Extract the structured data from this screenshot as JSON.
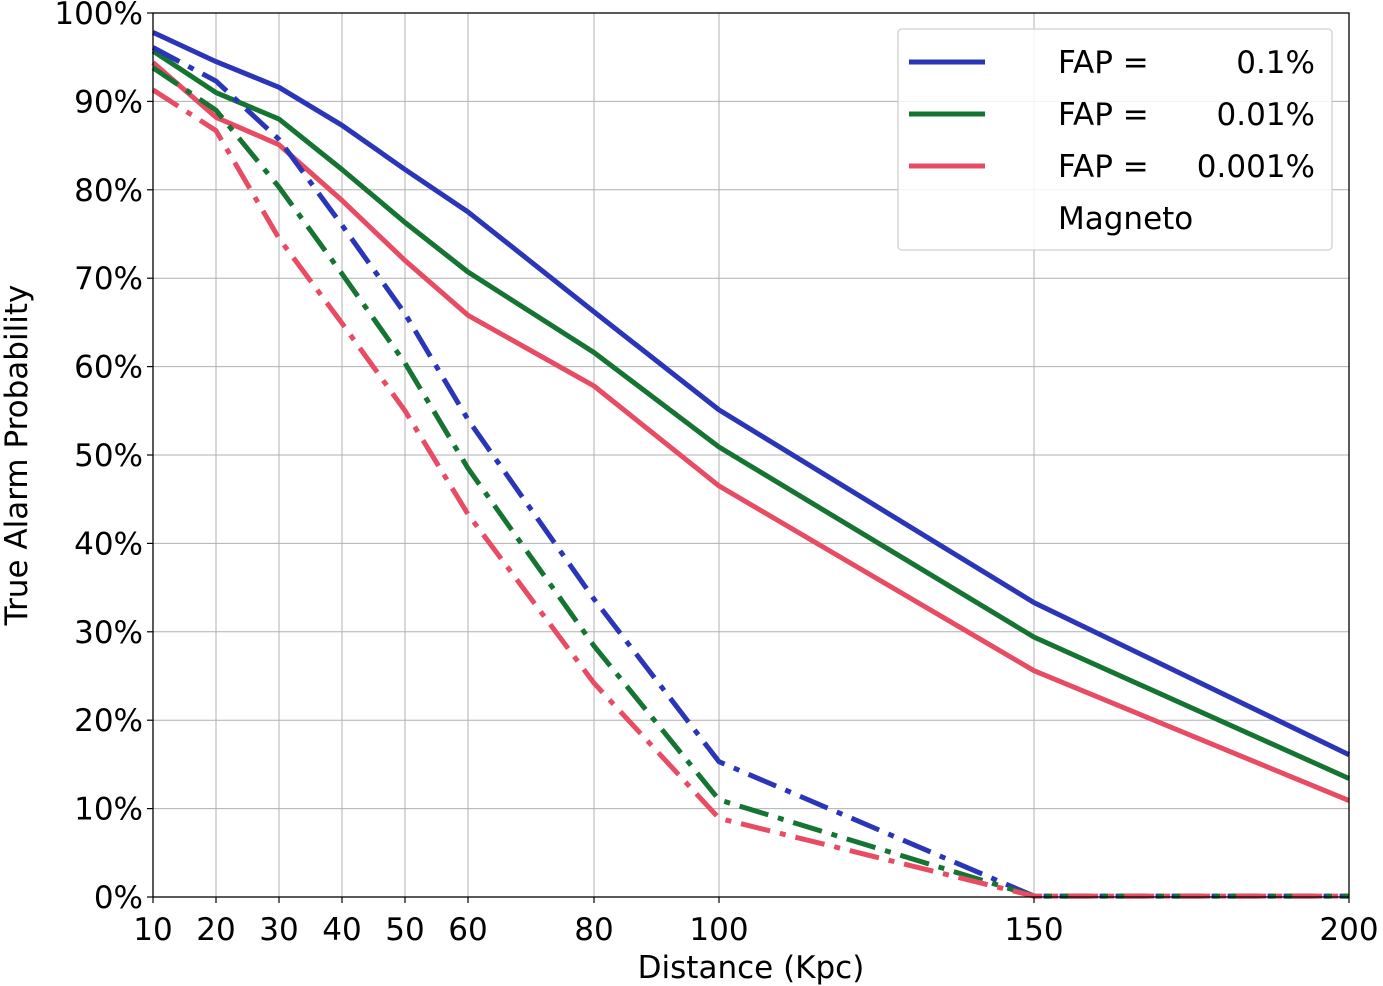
{
  "chart_data": {
    "type": "line",
    "xlabel": "Distance (Kpc)",
    "ylabel": "True Alarm Probability",
    "x": [
      10,
      20,
      30,
      40,
      50,
      60,
      80,
      100,
      150,
      200
    ],
    "xticks": [
      "10",
      "20",
      "30",
      "40",
      "50",
      "60",
      "80",
      "100",
      "150",
      "200"
    ],
    "yticks": [
      "0%",
      "10%",
      "20%",
      "30%",
      "40%",
      "50%",
      "60%",
      "70%",
      "80%",
      "90%",
      "100%"
    ],
    "ylim": [
      0,
      100
    ],
    "grid": true,
    "legend_position": "top-right",
    "legend": {
      "rows": [
        {
          "prefix": "FAP =",
          "value": "0.1%",
          "color": "#2b35b8"
        },
        {
          "prefix": "FAP =",
          "value": "0.01%",
          "color": "#157432"
        },
        {
          "prefix": "FAP =",
          "value": "0.001%",
          "color": "#e84c64"
        }
      ],
      "footer": "Magneto"
    },
    "series": [
      {
        "fap": "0.1%",
        "style": "solid",
        "color": "#2b35b8",
        "values": [
          97.8,
          94.5,
          91.6,
          87.3,
          82.3,
          77.5,
          66.2,
          55.1,
          33.3,
          16.1
        ]
      },
      {
        "fap": "0.01%",
        "style": "solid",
        "color": "#157432",
        "values": [
          95.7,
          91.0,
          88.0,
          82.3,
          76.3,
          70.7,
          61.6,
          50.9,
          29.4,
          13.4
        ]
      },
      {
        "fap": "0.001%",
        "style": "solid",
        "color": "#e84c64",
        "values": [
          94.4,
          88.2,
          85.1,
          78.8,
          72.0,
          65.8,
          57.8,
          46.5,
          25.6,
          10.9
        ]
      },
      {
        "fap": "0.1%",
        "style": "dashdot",
        "color": "#2b35b8",
        "values": [
          96.1,
          92.3,
          85.7,
          76.0,
          66.0,
          54.0,
          33.7,
          15.3,
          0.1,
          0.1
        ]
      },
      {
        "fap": "0.01%",
        "style": "dashdot",
        "color": "#157432",
        "values": [
          93.8,
          89.0,
          80.3,
          70.5,
          60.4,
          48.5,
          28.4,
          11.0,
          0.1,
          0.1
        ]
      },
      {
        "fap": "0.001%",
        "style": "dashdot",
        "color": "#e84c64",
        "values": [
          91.3,
          86.7,
          74.5,
          64.9,
          55.0,
          43.3,
          24.2,
          8.9,
          0.1,
          0.1
        ]
      }
    ]
  }
}
